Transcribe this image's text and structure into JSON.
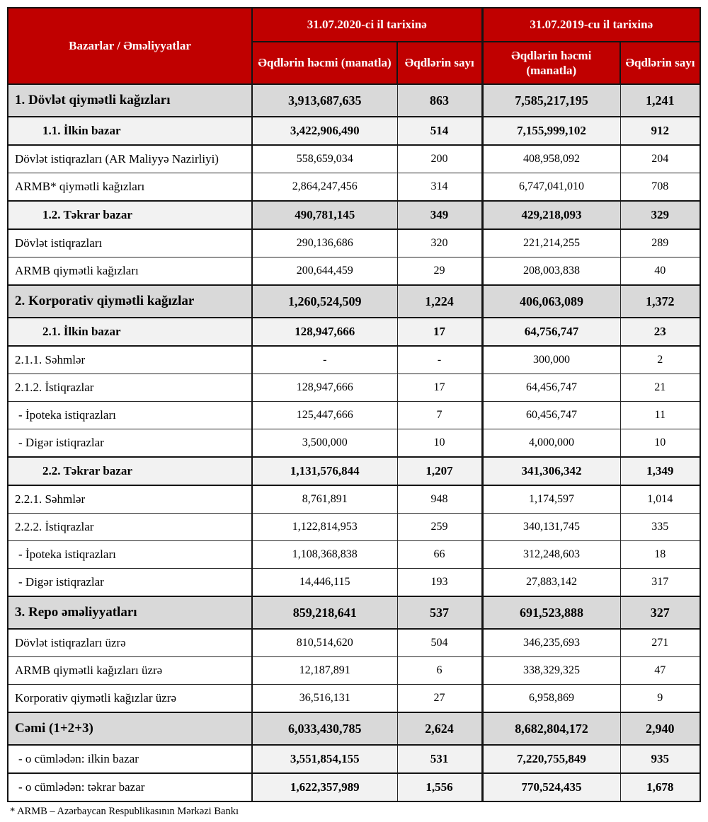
{
  "header": {
    "row_label": "Bazarlar / Əməliyyatlar",
    "period_2020": "31.07.2020-ci il tarixinə",
    "period_2019": "31.07.2019-cu il tarixinə",
    "volume_header": "Əqdlərin həcmi (manatla)",
    "count_header": "Əqdlərin sayı"
  },
  "colors": {
    "header_background": "#C00000",
    "header_text": "#FFFFFF",
    "section_row_background": "#D9D9D9",
    "subsection_row_background": "#F2F2F2",
    "border": "#141414"
  },
  "table": {
    "rows": [
      {
        "style": "section",
        "label": "1. Dövlət qiymətli kağızları",
        "volume_2020": "3,913,687,635",
        "count_2020": "863",
        "volume_2019": "7,585,217,195",
        "count_2019": "1,241"
      },
      {
        "style": "subsection",
        "label": "1.1. İlkin bazar",
        "volume_2020": "3,422,906,490",
        "count_2020": "514",
        "volume_2019": "7,155,999,102",
        "count_2019": "912"
      },
      {
        "style": "normal",
        "label": "Dövlət istiqrazları (AR Maliyyə Nazirliyi)",
        "volume_2020": "558,659,034",
        "count_2020": "200",
        "volume_2019": "408,958,092",
        "count_2019": "204"
      },
      {
        "style": "normal",
        "label": "ARMB* qiymətli kağızları",
        "volume_2020": "2,864,247,456",
        "count_2020": "314",
        "volume_2019": "6,747,041,010",
        "count_2019": "708"
      },
      {
        "style": "subsection2",
        "label": "1.2. Təkrar bazar",
        "volume_2020": "490,781,145",
        "count_2020": "349",
        "volume_2019": "429,218,093",
        "count_2019": "329"
      },
      {
        "style": "normal",
        "label": "Dövlət istiqrazları",
        "volume_2020": "290,136,686",
        "count_2020": "320",
        "volume_2019": "221,214,255",
        "count_2019": "289"
      },
      {
        "style": "normal",
        "label": "ARMB qiymətli kağızları",
        "volume_2020": "200,644,459",
        "count_2020": "29",
        "volume_2019": "208,003,838",
        "count_2019": "40"
      },
      {
        "style": "section",
        "label": "2. Korporativ qiymətli kağızlar",
        "volume_2020": "1,260,524,509",
        "count_2020": "1,224",
        "volume_2019": "406,063,089",
        "count_2019": "1,372"
      },
      {
        "style": "subsection",
        "label": "2.1. İlkin bazar",
        "volume_2020": "128,947,666",
        "count_2020": "17",
        "volume_2019": "64,756,747",
        "count_2019": "23"
      },
      {
        "style": "normal",
        "label": "2.1.1. Səhmlər",
        "volume_2020": "-",
        "count_2020": "-",
        "volume_2019": "300,000",
        "count_2019": "2"
      },
      {
        "style": "normal",
        "label": "2.1.2. İstiqrazlar",
        "volume_2020": "128,947,666",
        "count_2020": "17",
        "volume_2019": "64,456,747",
        "count_2019": "21"
      },
      {
        "style": "dash",
        "label": "- İpoteka istiqrazları",
        "volume_2020": "125,447,666",
        "count_2020": "7",
        "volume_2019": "60,456,747",
        "count_2019": "11"
      },
      {
        "style": "dash",
        "label": "- Digər istiqrazlar",
        "volume_2020": "3,500,000",
        "count_2020": "10",
        "volume_2019": "4,000,000",
        "count_2019": "10"
      },
      {
        "style": "subsection",
        "label": "2.2. Təkrar bazar",
        "volume_2020": "1,131,576,844",
        "count_2020": "1,207",
        "volume_2019": "341,306,342",
        "count_2019": "1,349"
      },
      {
        "style": "normal",
        "label": "2.2.1. Səhmlər",
        "volume_2020": "8,761,891",
        "count_2020": "948",
        "volume_2019": "1,174,597",
        "count_2019": "1,014"
      },
      {
        "style": "normal",
        "label": "2.2.2. İstiqrazlar",
        "volume_2020": "1,122,814,953",
        "count_2020": "259",
        "volume_2019": "340,131,745",
        "count_2019": "335"
      },
      {
        "style": "dash",
        "label": "- İpoteka istiqrazları",
        "volume_2020": "1,108,368,838",
        "count_2020": "66",
        "volume_2019": "312,248,603",
        "count_2019": "18"
      },
      {
        "style": "dash",
        "label": "- Digər istiqrazlar",
        "volume_2020": "14,446,115",
        "count_2020": "193",
        "volume_2019": "27,883,142",
        "count_2019": "317"
      },
      {
        "style": "section",
        "label": "3. Repo əməliyyatları",
        "volume_2020": "859,218,641",
        "count_2020": "537",
        "volume_2019": "691,523,888",
        "count_2019": "327"
      },
      {
        "style": "normal",
        "label": "Dövlət istiqrazları üzrə",
        "volume_2020": "810,514,620",
        "count_2020": "504",
        "volume_2019": "346,235,693",
        "count_2019": "271"
      },
      {
        "style": "normal",
        "label": "ARMB qiymətli kağızları üzrə",
        "volume_2020": "12,187,891",
        "count_2020": "6",
        "volume_2019": "338,329,325",
        "count_2019": "47"
      },
      {
        "style": "normal",
        "label": "Korporativ qiymətli kağızlar üzrə",
        "volume_2020": "36,516,131",
        "count_2020": "27",
        "volume_2019": "6,958,869",
        "count_2019": "9"
      },
      {
        "style": "section",
        "label": "Cəmi (1+2+3)",
        "volume_2020": "6,033,430,785",
        "count_2020": "2,624",
        "volume_2019": "8,682,804,172",
        "count_2019": "2,940"
      },
      {
        "style": "subtotal",
        "label": "- o cümlədən: ilkin bazar",
        "volume_2020": "3,551,854,155",
        "count_2020": "531",
        "volume_2019": "7,220,755,849",
        "count_2019": "935"
      },
      {
        "style": "subtotal",
        "label": "- o cümlədən: təkrar bazar",
        "volume_2020": "1,622,357,989",
        "count_2020": "1,556",
        "volume_2019": "770,524,435",
        "count_2019": "1,678"
      }
    ]
  },
  "footnote": "* ARMB – Azərbaycan Respublikasının Mərkəzi Bankı"
}
